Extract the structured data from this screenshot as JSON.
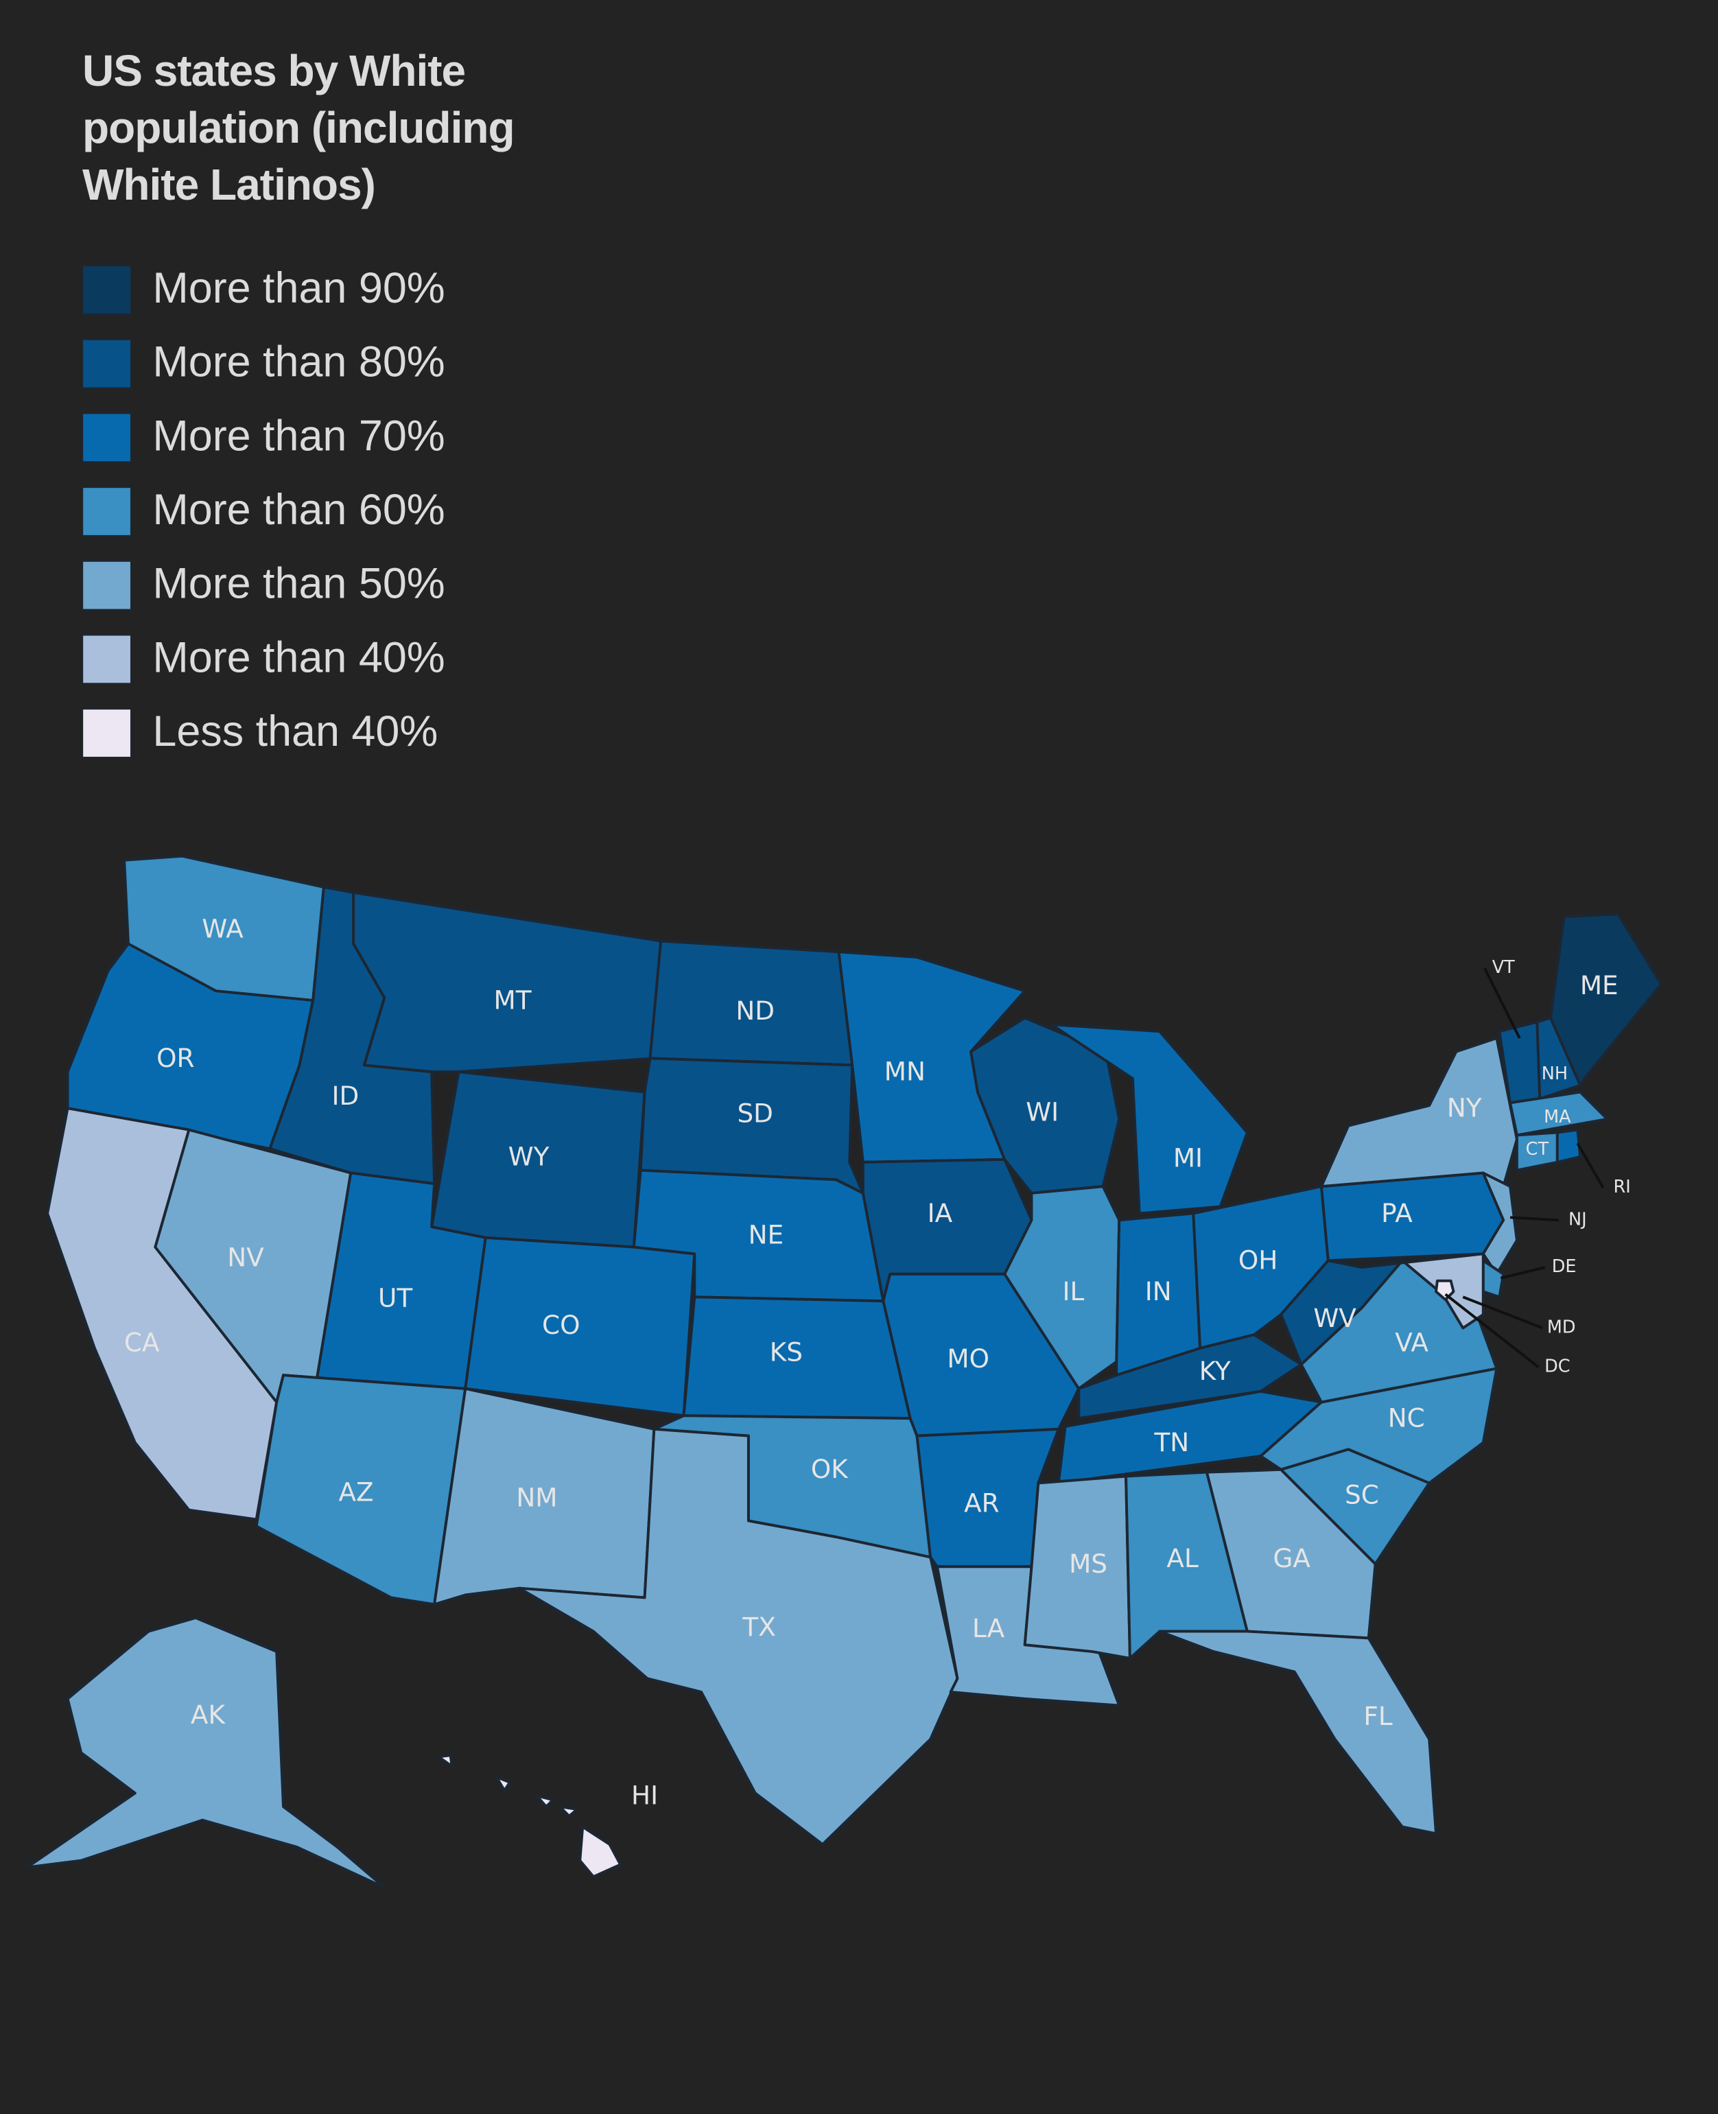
{
  "map": {
    "title": "US states by White population (including White Latinos)",
    "legend": [
      {
        "label": "More than 90%",
        "color": "#0b3a5f"
      },
      {
        "label": "More than 80%",
        "color": "#08528a"
      },
      {
        "label": "More than 70%",
        "color": "#086aae"
      },
      {
        "label": "More than 60%",
        "color": "#3a8fc3"
      },
      {
        "label": "More than 50%",
        "color": "#74a9cf"
      },
      {
        "label": "More than 40%",
        "color": "#aabfdc"
      },
      {
        "label": "Less than 40%",
        "color": "#ece7f2"
      }
    ],
    "states": [
      {
        "label": "WA",
        "color": "#3a8fc3"
      },
      {
        "label": "OR",
        "color": "#086aae"
      },
      {
        "label": "CA",
        "color": "#aabfdc"
      },
      {
        "label": "NV",
        "color": "#74a9cf"
      },
      {
        "label": "ID",
        "color": "#08528a"
      },
      {
        "label": "MT",
        "color": "#08528a"
      },
      {
        "label": "WY",
        "color": "#08528a"
      },
      {
        "label": "UT",
        "color": "#086aae"
      },
      {
        "label": "AZ",
        "color": "#3a8fc3"
      },
      {
        "label": "CO",
        "color": "#086aae"
      },
      {
        "label": "NM",
        "color": "#74a9cf"
      },
      {
        "label": "ND",
        "color": "#08528a"
      },
      {
        "label": "SD",
        "color": "#08528a"
      },
      {
        "label": "NE",
        "color": "#086aae"
      },
      {
        "label": "KS",
        "color": "#086aae"
      },
      {
        "label": "OK",
        "color": "#3a8fc3"
      },
      {
        "label": "TX",
        "color": "#74a9cf"
      },
      {
        "label": "MN",
        "color": "#086aae"
      },
      {
        "label": "IA",
        "color": "#08528a"
      },
      {
        "label": "MO",
        "color": "#086aae"
      },
      {
        "label": "AR",
        "color": "#086aae"
      },
      {
        "label": "LA",
        "color": "#74a9cf"
      },
      {
        "label": "WI",
        "color": "#08528a"
      },
      {
        "label": "IL",
        "color": "#3a8fc3"
      },
      {
        "label": "MI",
        "color": "#086aae"
      },
      {
        "label": "IN",
        "color": "#086aae"
      },
      {
        "label": "OH",
        "color": "#086aae"
      },
      {
        "label": "KY",
        "color": "#08528a"
      },
      {
        "label": "TN",
        "color": "#086aae"
      },
      {
        "label": "MS",
        "color": "#74a9cf"
      },
      {
        "label": "AL",
        "color": "#3a8fc3"
      },
      {
        "label": "GA",
        "color": "#74a9cf"
      },
      {
        "label": "FL",
        "color": "#74a9cf"
      },
      {
        "label": "SC",
        "color": "#3a8fc3"
      },
      {
        "label": "NC",
        "color": "#3a8fc3"
      },
      {
        "label": "VA",
        "color": "#3a8fc3"
      },
      {
        "label": "WV",
        "color": "#08528a"
      },
      {
        "label": "PA",
        "color": "#086aae"
      },
      {
        "label": "NY",
        "color": "#74a9cf"
      },
      {
        "label": "NJ",
        "color": "#74a9cf"
      },
      {
        "label": "DE",
        "color": "#3a8fc3"
      },
      {
        "label": "MD",
        "color": "#aabfdc"
      },
      {
        "label": "DC",
        "color": "#ece7f2"
      },
      {
        "label": "VT",
        "color": "#08528a"
      },
      {
        "label": "NH",
        "color": "#08528a"
      },
      {
        "label": "ME",
        "color": "#0b3a5f"
      },
      {
        "label": "MA",
        "color": "#3a8fc3"
      },
      {
        "label": "CT",
        "color": "#3a8fc3"
      },
      {
        "label": "RI",
        "color": "#086aae"
      },
      {
        "label": "AK",
        "color": "#74a9cf"
      },
      {
        "label": "HI",
        "color": "#ece7f2"
      }
    ]
  }
}
